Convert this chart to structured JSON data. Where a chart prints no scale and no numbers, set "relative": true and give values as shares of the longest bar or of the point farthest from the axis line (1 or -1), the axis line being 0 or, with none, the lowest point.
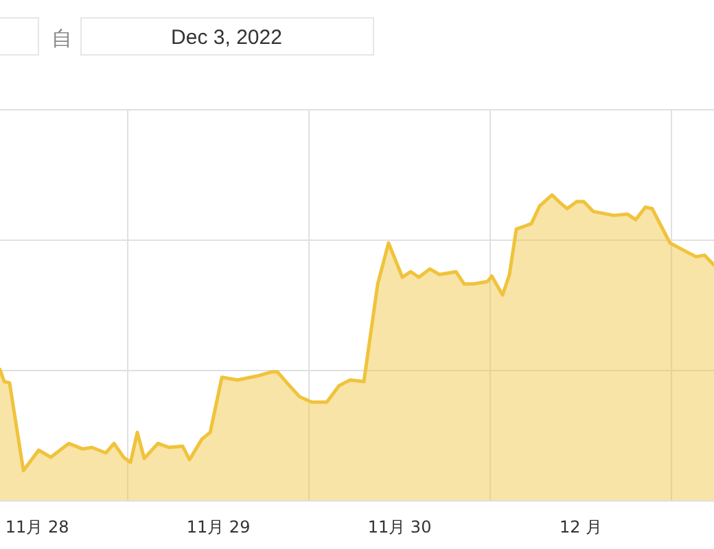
{
  "chart_data": {
    "type": "area",
    "relative": true,
    "color": "#f0c33c",
    "grid": true,
    "annotations": [
      "自",
      "Dec 3, 2022"
    ],
    "xlim": [
      "2022-11-27T19:05",
      "2022-12-01T17:38"
    ],
    "xticks": [
      {
        "value": "2022-11-28",
        "label": "11月 28"
      },
      {
        "value": "2022-11-28T12:00",
        "label": null
      },
      {
        "value": "2022-11-29",
        "label": "11月 29"
      },
      {
        "value": "2022-11-29T12:00",
        "label": null
      },
      {
        "value": "2022-11-30",
        "label": "11月 30"
      },
      {
        "value": "2022-11-30T12:00",
        "label": null
      },
      {
        "value": "2022-12-01",
        "label": "12 月"
      },
      {
        "value": "2022-12-01T12:00",
        "label": null
      }
    ],
    "x": [
      "2022-11-27T19:05",
      "2022-11-27T19:38",
      "2022-11-27T20:21",
      "2022-11-27T22:11",
      "2022-11-28T00:12",
      "2022-11-28T01:49",
      "2022-11-28T04:11",
      "2022-11-28T06:00",
      "2022-11-28T07:16",
      "2022-11-28T09:06",
      "2022-11-28T10:11",
      "2022-11-28T11:27",
      "2022-11-28T12:22",
      "2022-11-28T13:16",
      "2022-11-28T14:11",
      "2022-11-28T16:00",
      "2022-11-28T17:27",
      "2022-11-28T19:16",
      "2022-11-28T20:11",
      "2022-11-28T21:49",
      "2022-11-28T22:55",
      "2022-11-29T00:28",
      "2022-11-29T02:33",
      "2022-11-29T05:05",
      "2022-11-29T07:05",
      "2022-11-29T07:49",
      "2022-11-29T09:16",
      "2022-11-29T10:44",
      "2022-11-29T12:22",
      "2022-11-29T14:21",
      "2022-11-29T16:00",
      "2022-11-29T17:27",
      "2022-11-29T19:16",
      "2022-11-29T21:06",
      "2022-11-29T22:32",
      "2022-11-30T00:22",
      "2022-11-30T01:28",
      "2022-11-30T02:33",
      "2022-11-30T04:00",
      "2022-11-30T05:17",
      "2022-11-30T07:28",
      "2022-11-30T08:33",
      "2022-11-30T09:49",
      "2022-11-30T11:38",
      "2022-11-30T12:12",
      "2022-11-30T13:38",
      "2022-11-30T14:33",
      "2022-11-30T15:27",
      "2022-11-30T17:27",
      "2022-11-30T18:33",
      "2022-11-30T20:11",
      "2022-11-30T21:06",
      "2022-11-30T22:11",
      "2022-11-30T23:27",
      "2022-12-01T00:22",
      "2022-12-01T01:38",
      "2022-12-01T04:22",
      "2022-12-01T06:12",
      "2022-12-01T07:16",
      "2022-12-01T08:33",
      "2022-12-01T09:27",
      "2022-12-01T11:48",
      "2022-12-01T13:28",
      "2022-12-01T15:16",
      "2022-12-01T16:22",
      "2022-12-01T17:38"
    ],
    "values": [
      0.43,
      0.39,
      0.386,
      0.099,
      0.166,
      0.143,
      0.188,
      0.17,
      0.175,
      0.157,
      0.188,
      0.143,
      0.126,
      0.224,
      0.139,
      0.188,
      0.175,
      0.179,
      0.135,
      0.202,
      0.224,
      0.404,
      0.395,
      0.408,
      0.422,
      0.422,
      0.381,
      0.341,
      0.323,
      0.323,
      0.377,
      0.395,
      0.39,
      0.709,
      0.843,
      0.731,
      0.749,
      0.731,
      0.758,
      0.74,
      0.749,
      0.709,
      0.709,
      0.717,
      0.735,
      0.673,
      0.74,
      0.888,
      0.906,
      0.964,
      1,
      0.978,
      0.955,
      0.978,
      0.978,
      0.946,
      0.933,
      0.937,
      0.919,
      0.96,
      0.955,
      0.843,
      0.821,
      0.798,
      0.803,
      0.771
    ]
  }
}
